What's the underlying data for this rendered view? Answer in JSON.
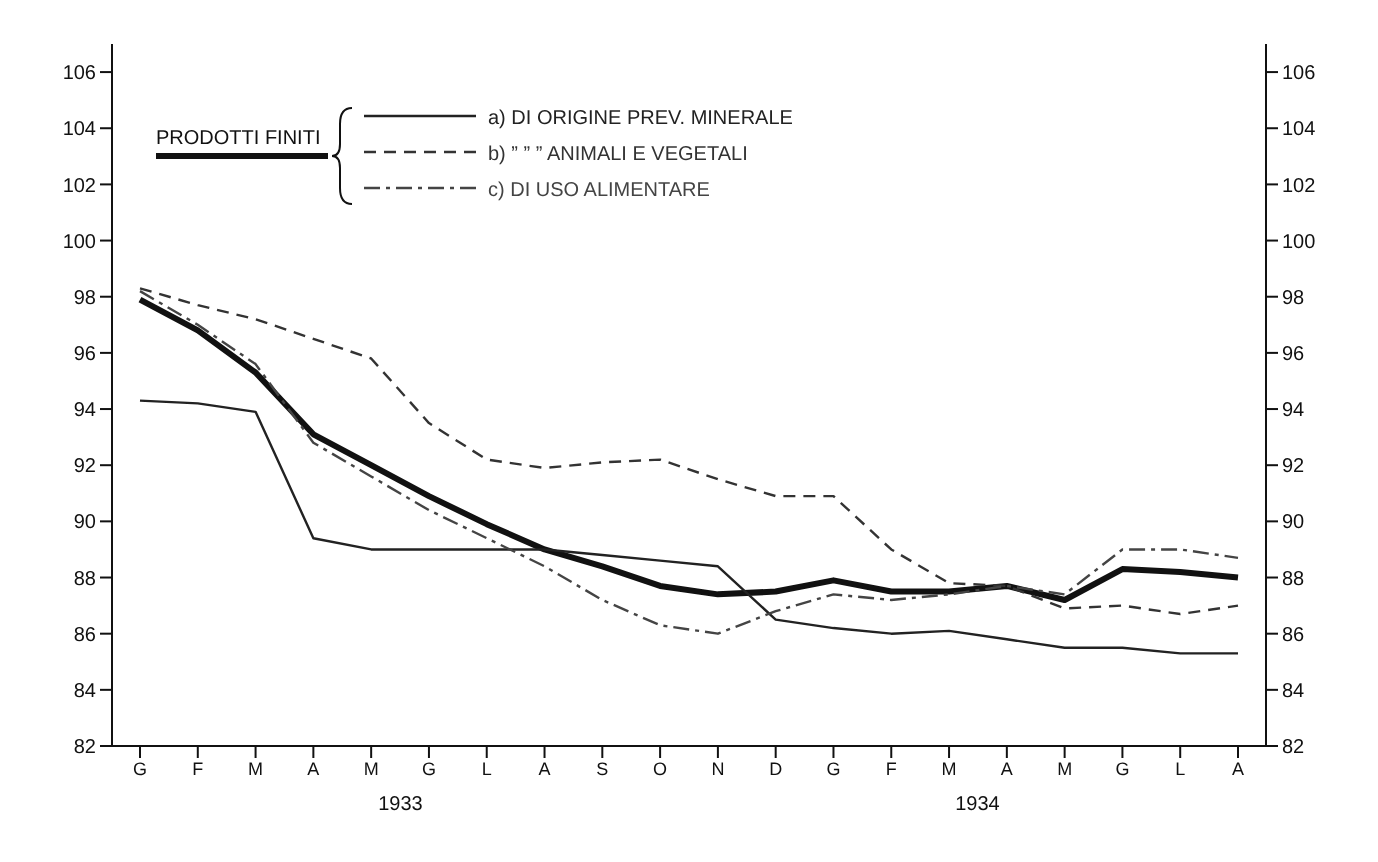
{
  "chart_data": {
    "type": "line",
    "categories": [
      "G",
      "F",
      "M",
      "A",
      "M",
      "G",
      "L",
      "A",
      "S",
      "O",
      "N",
      "D",
      "G",
      "F",
      "M",
      "A",
      "M",
      "G",
      "L",
      "A"
    ],
    "series": [
      {
        "name": "PRODOTTI FINITI",
        "color": "#111111",
        "line_style": "solid",
        "values": [
          97.9,
          96.8,
          95.3,
          93.1,
          92.0,
          90.9,
          89.9,
          89.0,
          88.4,
          87.7,
          87.4,
          87.5,
          87.9,
          87.5,
          87.5,
          87.7,
          87.2,
          88.3,
          88.2,
          88.0
        ]
      },
      {
        "name": "a) DI ORIGINE PREV. MINERALE",
        "color": "#222222",
        "line_style": "solid",
        "values": [
          94.3,
          94.2,
          93.9,
          89.4,
          89.0,
          89.0,
          89.0,
          89.0,
          88.8,
          88.6,
          88.4,
          86.5,
          86.2,
          86.0,
          86.1,
          85.8,
          85.5,
          85.5,
          85.3,
          85.3
        ]
      },
      {
        "name": "b) ” ” ” ANIMALI E VEGETALI",
        "color": "#333333",
        "line_style": "dashed",
        "values": [
          98.3,
          97.7,
          97.2,
          96.5,
          95.8,
          93.5,
          92.2,
          91.9,
          92.1,
          92.2,
          91.5,
          90.9,
          90.9,
          89.0,
          87.8,
          87.7,
          86.9,
          87.0,
          86.7,
          87.0
        ]
      },
      {
        "name": "c) DI USO ALIMENTARE",
        "color": "#444444",
        "line_style": "dashdot",
        "values": [
          98.2,
          97.0,
          95.6,
          92.8,
          91.6,
          90.4,
          89.4,
          88.4,
          87.2,
          86.3,
          86.0,
          86.8,
          87.4,
          87.2,
          87.4,
          87.7,
          87.4,
          89.0,
          89.0,
          88.7
        ]
      }
    ],
    "ylim": [
      82,
      107
    ],
    "yticks": [
      82,
      84,
      86,
      88,
      90,
      92,
      94,
      96,
      98,
      100,
      102,
      104,
      106
    ],
    "y2lim": [
      82,
      107
    ],
    "y2ticks": [
      82,
      84,
      86,
      88,
      90,
      92,
      94,
      96,
      98,
      100,
      102,
      104,
      106
    ],
    "annotations": [
      "1933",
      "1934"
    ],
    "legend": "top left",
    "grid": false,
    "marker": "none"
  }
}
